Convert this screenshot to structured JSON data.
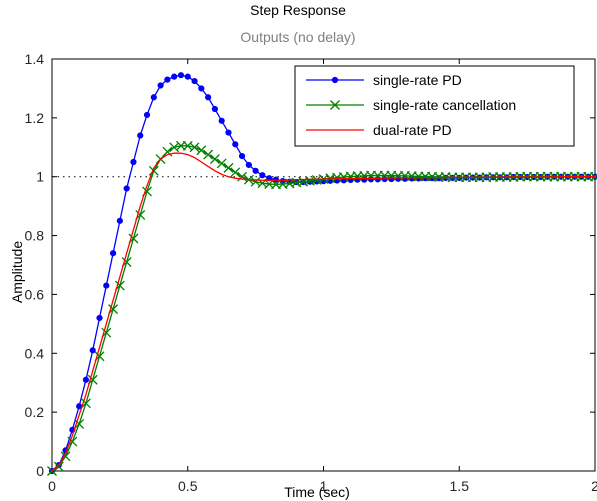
{
  "chart_data": {
    "type": "line",
    "title": "Step Response",
    "subtitle": "Outputs (no delay)",
    "xlabel": "Time (sec)",
    "ylabel": "Amplitude",
    "xlim": [
      0,
      2
    ],
    "ylim": [
      0,
      1.4
    ],
    "xticks": [
      0,
      0.5,
      1,
      1.5,
      2
    ],
    "xtick_labels": [
      "0",
      "0.5",
      "1",
      "1.5",
      "2"
    ],
    "yticks": [
      0,
      0.2,
      0.4,
      0.6,
      0.8,
      1,
      1.2,
      1.4
    ],
    "ytick_labels": [
      "0",
      "0.2",
      "0.4",
      "0.6",
      "0.8",
      "1",
      "1.2",
      "1.4"
    ],
    "grid": false,
    "legend_position": "top-right",
    "reference_line": {
      "y": 1,
      "style": "dotted",
      "color": "#000000"
    },
    "series": [
      {
        "name": "single-rate PD",
        "color": "#0000ff",
        "marker": "dot",
        "x": [
          0,
          0.025,
          0.05,
          0.075,
          0.1,
          0.125,
          0.15,
          0.175,
          0.2,
          0.225,
          0.25,
          0.275,
          0.3,
          0.325,
          0.35,
          0.375,
          0.4,
          0.425,
          0.45,
          0.475,
          0.5,
          0.525,
          0.55,
          0.575,
          0.6,
          0.625,
          0.65,
          0.675,
          0.7,
          0.725,
          0.75,
          0.775,
          0.8,
          0.825,
          0.85,
          0.875,
          0.9,
          0.925,
          0.95,
          0.975,
          1,
          1.025,
          1.05,
          1.075,
          1.1,
          1.125,
          1.15,
          1.175,
          1.2,
          1.225,
          1.25,
          1.275,
          1.3,
          1.325,
          1.35,
          1.375,
          1.4,
          1.425,
          1.45,
          1.475,
          1.5,
          1.525,
          1.55,
          1.575,
          1.6,
          1.625,
          1.65,
          1.675,
          1.7,
          1.725,
          1.75,
          1.775,
          1.8,
          1.825,
          1.85,
          1.875,
          1.9,
          1.925,
          1.95,
          1.975,
          2
        ],
        "y": [
          0,
          0.02,
          0.07,
          0.14,
          0.22,
          0.31,
          0.41,
          0.52,
          0.63,
          0.74,
          0.85,
          0.96,
          1.05,
          1.14,
          1.21,
          1.27,
          1.31,
          1.33,
          1.34,
          1.345,
          1.34,
          1.325,
          1.3,
          1.27,
          1.23,
          1.19,
          1.15,
          1.11,
          1.07,
          1.04,
          1.02,
          1.005,
          0.995,
          0.99,
          0.985,
          0.983,
          0.982,
          0.982,
          0.983,
          0.984,
          0.985,
          0.986,
          0.987,
          0.988,
          0.989,
          0.99,
          0.99,
          0.991,
          0.991,
          0.992,
          0.992,
          0.993,
          0.993,
          0.994,
          0.994,
          0.995,
          0.995,
          0.995,
          0.996,
          0.996,
          0.996,
          0.997,
          0.997,
          0.997,
          0.998,
          0.998,
          0.998,
          0.998,
          0.999,
          0.999,
          0.999,
          0.999,
          0.999,
          1,
          1,
          1,
          1,
          1,
          1,
          1,
          1
        ]
      },
      {
        "name": "single-rate cancellation",
        "color": "#008000",
        "marker": "x",
        "x": [
          0,
          0.025,
          0.05,
          0.075,
          0.1,
          0.125,
          0.15,
          0.175,
          0.2,
          0.225,
          0.25,
          0.275,
          0.3,
          0.325,
          0.35,
          0.375,
          0.4,
          0.425,
          0.45,
          0.475,
          0.5,
          0.525,
          0.55,
          0.575,
          0.6,
          0.625,
          0.65,
          0.675,
          0.7,
          0.725,
          0.75,
          0.775,
          0.8,
          0.825,
          0.85,
          0.875,
          0.9,
          0.925,
          0.95,
          0.975,
          1,
          1.025,
          1.05,
          1.075,
          1.1,
          1.125,
          1.15,
          1.175,
          1.2,
          1.225,
          1.25,
          1.275,
          1.3,
          1.325,
          1.35,
          1.375,
          1.4,
          1.425,
          1.45,
          1.475,
          1.5,
          1.525,
          1.55,
          1.575,
          1.6,
          1.625,
          1.65,
          1.675,
          1.7,
          1.725,
          1.75,
          1.775,
          1.8,
          1.825,
          1.85,
          1.875,
          1.9,
          1.925,
          1.95,
          1.975,
          2
        ],
        "y": [
          0,
          0.015,
          0.05,
          0.1,
          0.16,
          0.23,
          0.31,
          0.39,
          0.47,
          0.55,
          0.63,
          0.71,
          0.79,
          0.87,
          0.95,
          1.02,
          1.06,
          1.085,
          1.1,
          1.105,
          1.105,
          1.1,
          1.09,
          1.075,
          1.06,
          1.045,
          1.03,
          1.015,
          1,
          0.99,
          0.983,
          0.978,
          0.975,
          0.974,
          0.975,
          0.977,
          0.98,
          0.983,
          0.986,
          0.989,
          0.992,
          0.995,
          0.997,
          0.999,
          1.001,
          1.002,
          1.003,
          1.004,
          1.004,
          1.004,
          1.004,
          1.003,
          1.003,
          1.002,
          1.001,
          1.001,
          1,
          0.999,
          0.999,
          0.998,
          0.998,
          0.998,
          0.998,
          0.998,
          0.998,
          0.999,
          0.999,
          0.999,
          0.999,
          1,
          1,
          1,
          1,
          1,
          1,
          1,
          1,
          1,
          1,
          1,
          1
        ]
      },
      {
        "name": "dual-rate PD",
        "color": "#ff0000",
        "marker": "none",
        "x": [
          0,
          0.025,
          0.05,
          0.075,
          0.1,
          0.125,
          0.15,
          0.175,
          0.2,
          0.225,
          0.25,
          0.275,
          0.3,
          0.325,
          0.35,
          0.375,
          0.4,
          0.425,
          0.45,
          0.475,
          0.5,
          0.525,
          0.55,
          0.575,
          0.6,
          0.625,
          0.65,
          0.675,
          0.7,
          0.725,
          0.75,
          0.775,
          0.8,
          0.825,
          0.85,
          0.875,
          0.9,
          0.95,
          1,
          1.1,
          1.2,
          1.3,
          1.4,
          1.5,
          1.6,
          1.7,
          1.8,
          1.9,
          2
        ],
        "y": [
          0,
          0.02,
          0.06,
          0.12,
          0.19,
          0.26,
          0.34,
          0.42,
          0.5,
          0.58,
          0.66,
          0.74,
          0.82,
          0.9,
          0.97,
          1.03,
          1.06,
          1.075,
          1.08,
          1.08,
          1.075,
          1.065,
          1.05,
          1.035,
          1.02,
          1.008,
          1,
          0.995,
          0.992,
          0.99,
          0.989,
          0.988,
          0.988,
          0.988,
          0.988,
          0.989,
          0.99,
          0.991,
          0.992,
          0.994,
          0.995,
          0.996,
          0.997,
          0.998,
          0.998,
          0.999,
          0.999,
          1,
          1
        ]
      }
    ]
  }
}
